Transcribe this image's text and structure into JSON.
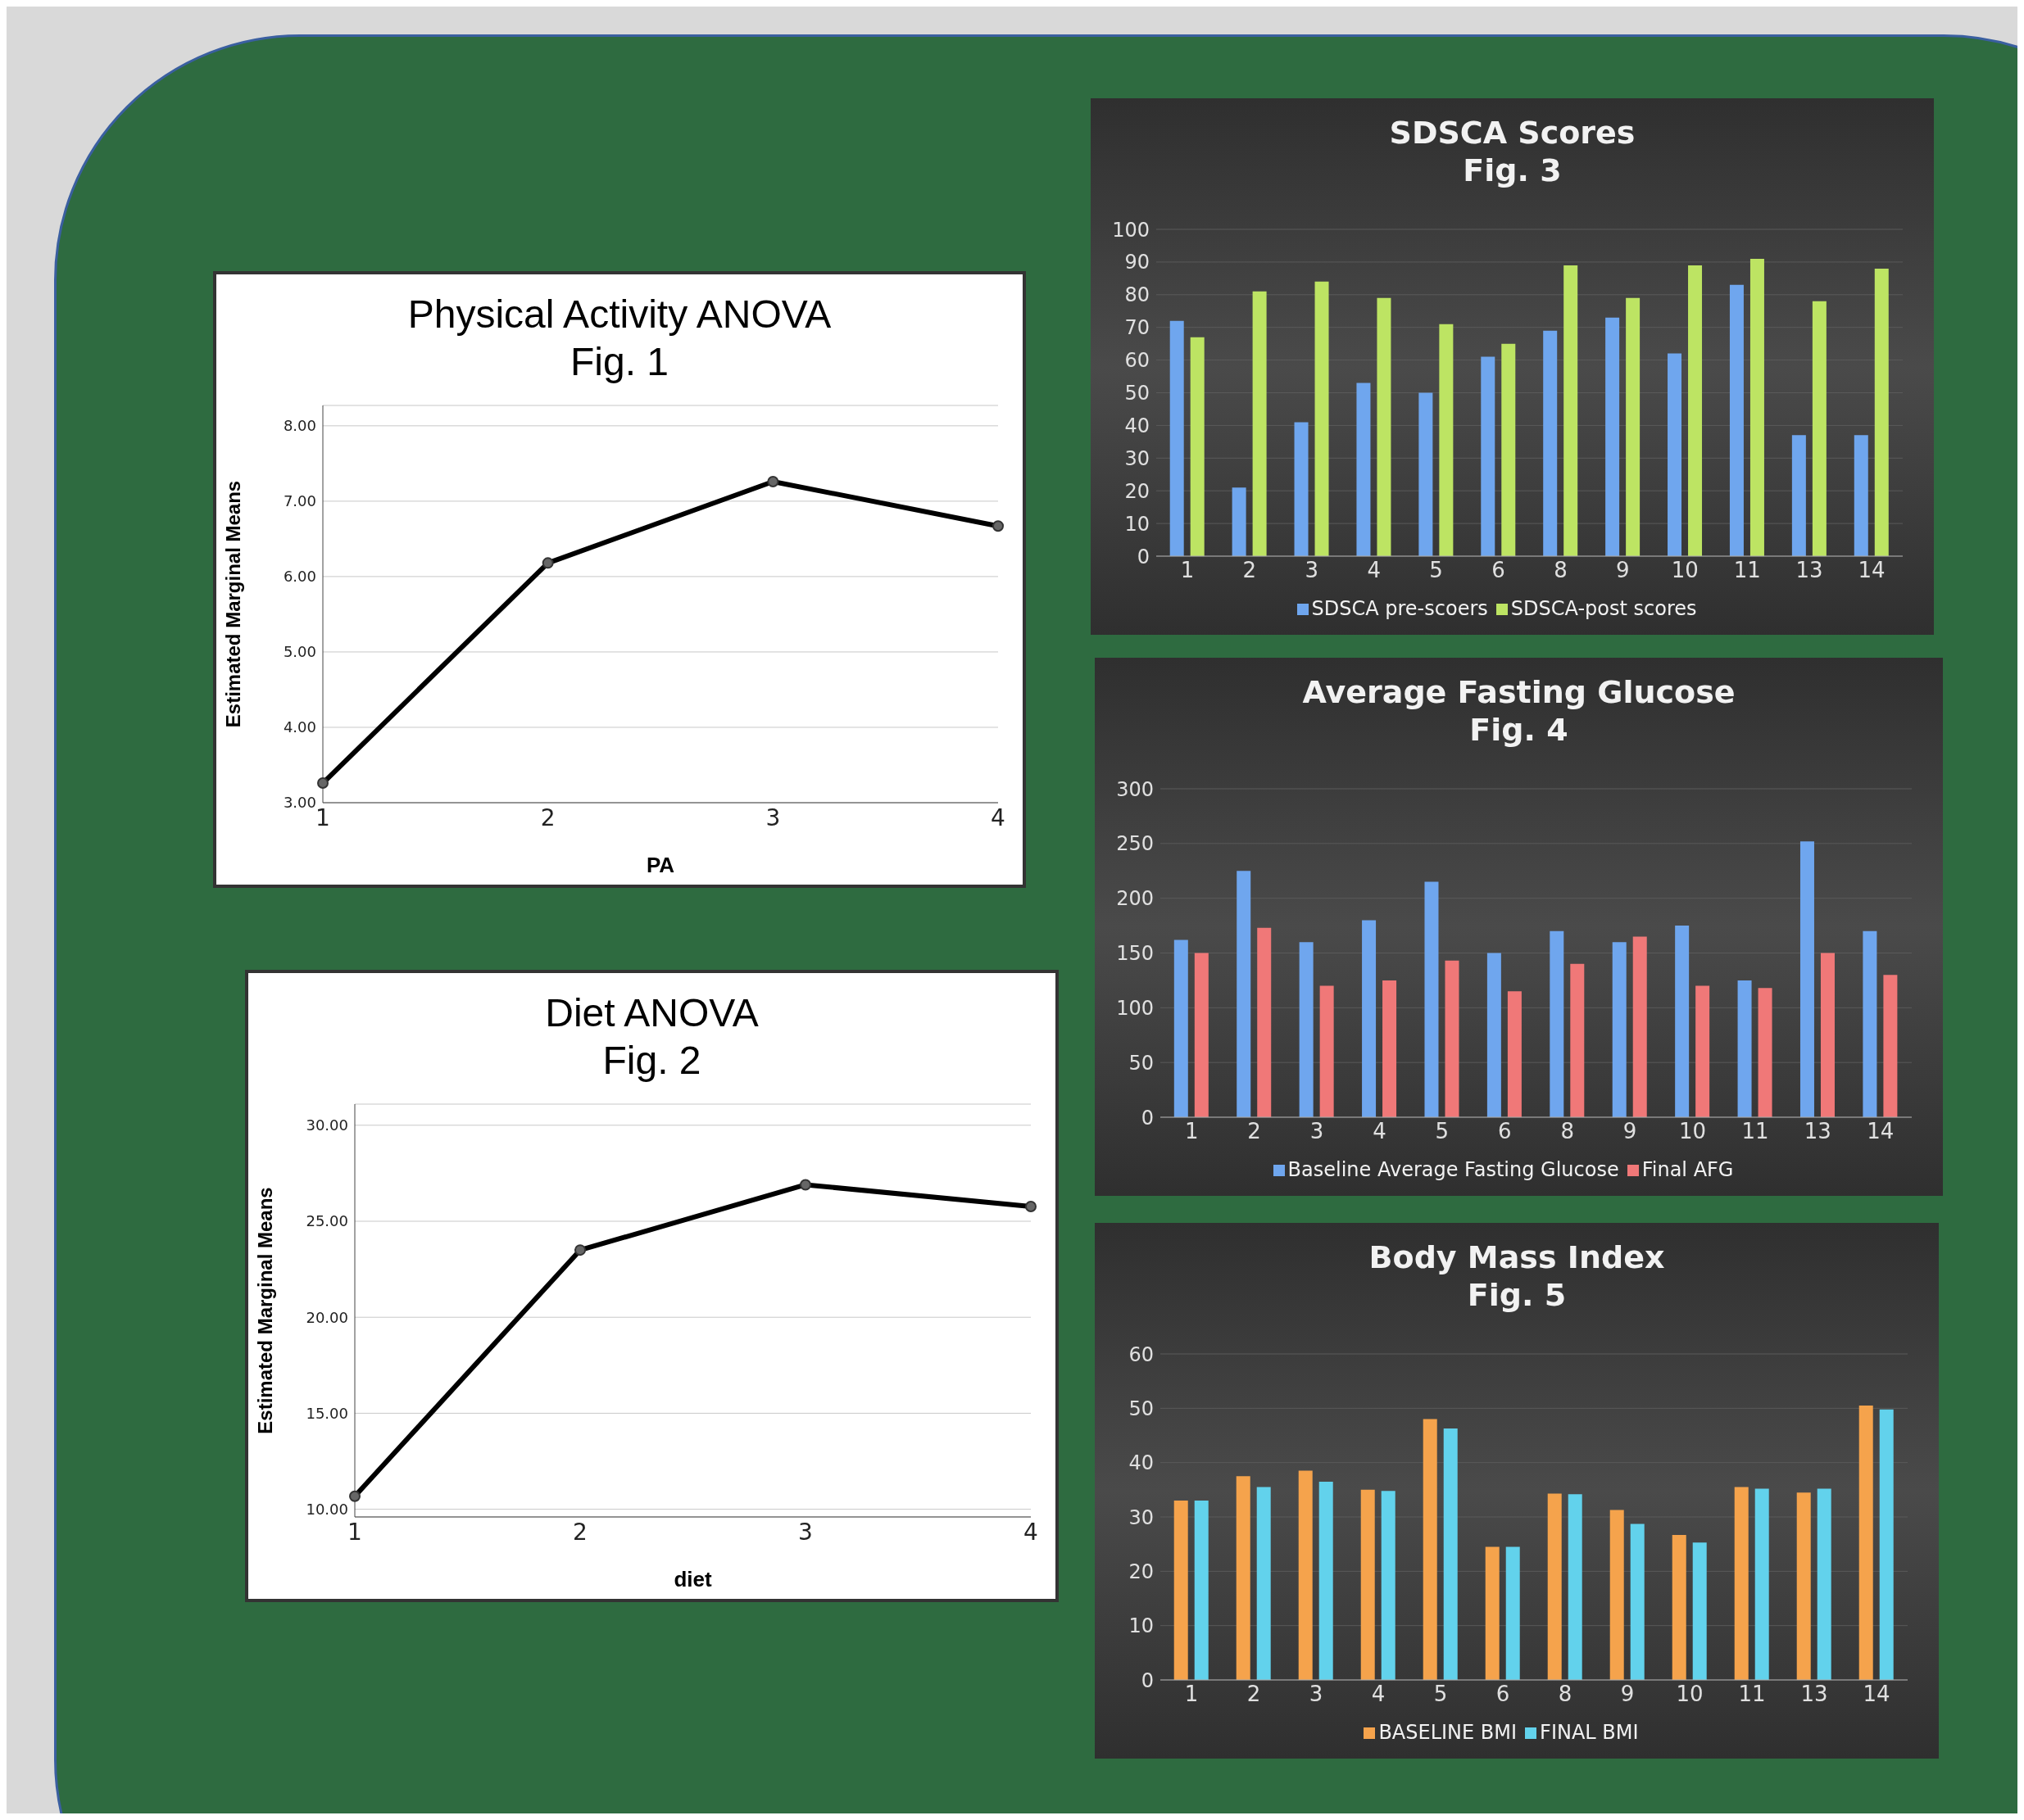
{
  "chart_data": [
    {
      "type": "line",
      "title": "Physical Activity ANOVA",
      "subtitle": "Fig. 1",
      "xlabel": "PA",
      "ylabel": "Estimated Marginal Means",
      "categories": [
        "1",
        "2",
        "3",
        "4"
      ],
      "series": [
        {
          "color": "#000000",
          "values": [
            3.26,
            6.18,
            7.26,
            6.67
          ]
        }
      ],
      "ylim": [
        3,
        8.27
      ],
      "yticks": [
        {
          "value": 3,
          "label": "3.00"
        },
        {
          "value": 4,
          "label": "4.00"
        },
        {
          "value": 5,
          "label": "5.00"
        },
        {
          "value": 6,
          "label": "6.00"
        },
        {
          "value": 7,
          "label": "7.00"
        },
        {
          "value": 8,
          "label": "8.00"
        }
      ],
      "grid": "y",
      "marker": "circle",
      "line_style": "solid",
      "legend": false
    },
    {
      "type": "line",
      "title": "Diet ANOVA",
      "subtitle": "Fig. 2",
      "xlabel": "diet",
      "ylabel": "Estimated Marginal Means",
      "categories": [
        "1",
        "2",
        "3",
        "4"
      ],
      "series": [
        {
          "color": "#000000",
          "values": [
            10.68,
            23.5,
            26.9,
            25.77
          ]
        }
      ],
      "ylim": [
        9.6,
        31.1
      ],
      "yticks": [
        {
          "value": 10,
          "label": "10.00"
        },
        {
          "value": 15,
          "label": "15.00"
        },
        {
          "value": 20,
          "label": "20.00"
        },
        {
          "value": 25,
          "label": "25.00"
        },
        {
          "value": 30,
          "label": "30.00"
        }
      ],
      "grid": "y",
      "marker": "circle",
      "line_style": "solid",
      "legend": false
    },
    {
      "type": "bar",
      "title": "SDSCA Scores",
      "subtitle": "Fig. 3",
      "categories": [
        "1",
        "2",
        "3",
        "4",
        "5",
        "6",
        "8",
        "9",
        "10",
        "11",
        "13",
        "14"
      ],
      "series": [
        {
          "name": "SDSCA pre-scoers",
          "color": "#6fa6ee",
          "values": [
            72,
            21,
            41,
            53,
            50,
            61,
            69,
            73,
            62,
            83,
            37,
            37
          ]
        },
        {
          "name": "SDSCA-post scores",
          "color": "#bde463",
          "values": [
            67,
            81,
            84,
            79,
            71,
            65,
            89,
            79,
            89,
            91,
            78,
            88
          ]
        }
      ],
      "ylim": [
        0,
        100
      ],
      "yticks": [
        0,
        10,
        20,
        30,
        40,
        50,
        60,
        70,
        80,
        90,
        100
      ],
      "grid": "y",
      "legend": "bottom"
    },
    {
      "type": "bar",
      "title": "Average Fasting Glucose",
      "subtitle": "Fig. 4",
      "categories": [
        "1",
        "2",
        "3",
        "4",
        "5",
        "6",
        "8",
        "9",
        "10",
        "11",
        "13",
        "14"
      ],
      "series": [
        {
          "name": "Baseline Average Fasting Glucose",
          "color": "#6fa6ee",
          "values": [
            162,
            225,
            160,
            180,
            215,
            150,
            170,
            160,
            175,
            125,
            252,
            170
          ]
        },
        {
          "name": "Final AFG",
          "color": "#f07878",
          "values": [
            150,
            173,
            120,
            125,
            143,
            115,
            140,
            165,
            120,
            118,
            150,
            130
          ]
        }
      ],
      "ylim": [
        0,
        300
      ],
      "yticks": [
        0,
        50,
        100,
        150,
        200,
        250,
        300
      ],
      "grid": "y",
      "legend": "bottom"
    },
    {
      "type": "bar",
      "title": "Body Mass Index",
      "subtitle": "Fig. 5",
      "categories": [
        "1",
        "2",
        "3",
        "4",
        "5",
        "6",
        "8",
        "9",
        "10",
        "11",
        "13",
        "14"
      ],
      "series": [
        {
          "name": "BASELINE BMI",
          "color": "#f5a34c",
          "values": [
            33,
            37.5,
            38.5,
            35,
            48,
            24.5,
            34.3,
            31.3,
            26.7,
            35.5,
            34.5,
            50.5
          ]
        },
        {
          "name": "FINAL BMI",
          "color": "#62d2ec",
          "values": [
            33,
            35.5,
            36.5,
            34.8,
            46.3,
            24.5,
            34.2,
            28.7,
            25.3,
            35.2,
            35.2,
            49.8
          ]
        }
      ],
      "ylim": [
        0,
        60
      ],
      "yticks": [
        0,
        10,
        20,
        30,
        40,
        50,
        60
      ],
      "grid": "y",
      "legend": "bottom"
    }
  ]
}
